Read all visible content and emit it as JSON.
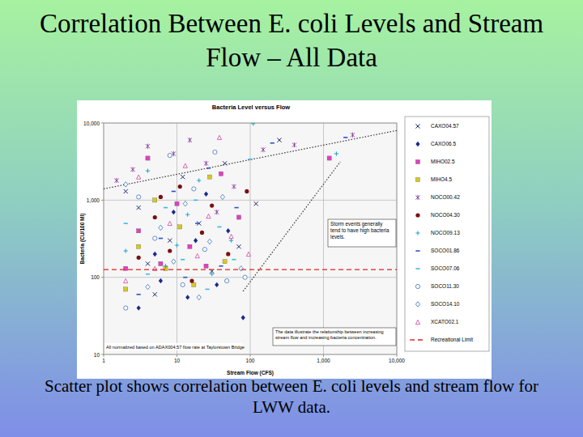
{
  "slide": {
    "title": "Correlation Between E. coli Levels and Stream Flow – All Data",
    "caption": "Scatter plot shows correlation between E. coli levels and stream flow for LWW data."
  },
  "chart_data": {
    "type": "scatter",
    "title": "Bacteria Level versus Flow",
    "x_label": "Stream Flow (CFS)",
    "y_label": "Bacteria (CU/100 Ml)",
    "log": true,
    "grid": true,
    "legend": "right",
    "xlim": [
      1,
      10000
    ],
    "xticks": [
      1,
      10,
      100,
      {
        "value": 1000,
        "label": "1,000"
      },
      {
        "value": 10000,
        "label": "10,000"
      }
    ],
    "ylim": [
      10,
      10000
    ],
    "yticks": [
      10,
      100,
      {
        "value": 1000,
        "label": "1,000"
      },
      {
        "value": 10000,
        "label": "10,000"
      }
    ],
    "annotations": [
      "Storm events generally tend to have high bacteria levels.",
      "The data illustrate the relationship between increasing stream flow and increasing bacteria concentration.",
      "All normalized based on ADAX004.57 flow rate at Taylorstown Bridge"
    ],
    "trend_lines": [
      {
        "x": [
          1,
          10000
        ],
        "values": [
          1400,
          8000
        ],
        "line_style": "dotted"
      },
      {
        "x": [
          80,
          1700
        ],
        "values": [
          66,
          3150
        ],
        "line_style": "dotted"
      }
    ],
    "series": [
      {
        "name": "CAXO04.57",
        "color": "#1a2a6c",
        "marker": "x",
        "x": [
          2,
          3,
          4,
          5,
          8,
          12,
          20,
          30,
          45,
          70,
          120,
          250
        ],
        "values": [
          1300,
          800,
          150,
          60,
          300,
          2000,
          500,
          120,
          3000,
          250,
          900,
          6000
        ]
      },
      {
        "name": "CAXO06.5",
        "color": "#1a2a8c",
        "marker": "diamond",
        "x": [
          3,
          5,
          6,
          9,
          14,
          18,
          25,
          35,
          50,
          80
        ],
        "values": [
          40,
          200,
          90,
          700,
          55,
          300,
          1200,
          80,
          400,
          30
        ]
      },
      {
        "name": "MIHO02.5",
        "color": "#e040c0",
        "marker": "square",
        "x": [
          2,
          3,
          4,
          6,
          10,
          15,
          25,
          40,
          70,
          1200
        ],
        "values": [
          130,
          400,
          3500,
          150,
          900,
          250,
          140,
          2200,
          600,
          3500
        ]
      },
      {
        "name": "MIHO4.5",
        "color": "#d8c820",
        "marker": "square",
        "x": [
          2,
          3,
          5,
          7,
          11,
          17,
          28,
          45
        ],
        "values": [
          70,
          250,
          1000,
          130,
          450,
          80,
          2000,
          160
        ]
      },
      {
        "name": "NOCO00.42",
        "color": "#8a3aa0",
        "marker": "asterisk",
        "x": [
          1.5,
          2.5,
          4,
          9,
          15,
          25,
          35,
          60,
          150,
          400,
          2500
        ],
        "values": [
          1800,
          2500,
          5000,
          4000,
          6000,
          3000,
          700,
          1500,
          4500,
          5200,
          7000
        ]
      },
      {
        "name": "NOCO04.30",
        "color": "#7a1010",
        "marker": "circle",
        "x": [
          3,
          5,
          6,
          8,
          11,
          16,
          22,
          30,
          50,
          90
        ],
        "values": [
          180,
          600,
          1100,
          220,
          1500,
          90,
          380,
          850,
          200,
          1300
        ]
      },
      {
        "name": "NOCO09.13",
        "color": "#1aa3c9",
        "marker": "plus",
        "x": [
          2,
          4,
          7,
          10,
          14,
          20,
          30,
          55,
          110,
          1500
        ],
        "values": [
          220,
          2400,
          140,
          260,
          650,
          1800,
          110,
          300,
          9800,
          4000
        ]
      },
      {
        "name": "SOCO01.86",
        "color": "#3050c8",
        "marker": "dash",
        "x": [
          3,
          6,
          9,
          13,
          19,
          27,
          40,
          65,
          200,
          2000
        ],
        "values": [
          60,
          320,
          1300,
          100,
          500,
          2600,
          140,
          800,
          5500,
          6500
        ]
      },
      {
        "name": "SOCO07.06",
        "color": "#40b8e8",
        "marker": "dash",
        "x": [
          2,
          4,
          7,
          12,
          18,
          26,
          38,
          60,
          100
        ],
        "values": [
          500,
          110,
          800,
          170,
          1000,
          70,
          450,
          170,
          3400
        ]
      },
      {
        "name": "SOCO11.30",
        "color": "#5080c0",
        "marker": "circle-open",
        "x": [
          2,
          3,
          5,
          8,
          12,
          17,
          24,
          33,
          48,
          85
        ],
        "values": [
          40,
          1100,
          320,
          3800,
          80,
          1400,
          230,
          4200,
          90,
          100
        ]
      },
      {
        "name": "SOCO14.10",
        "color": "#3070b0",
        "marker": "diamond-open",
        "x": [
          2,
          4,
          6,
          9,
          13,
          20,
          28,
          42,
          75
        ],
        "values": [
          1600,
          75,
          440,
          160,
          900,
          55,
          290,
          1100,
          130
        ]
      },
      {
        "name": "XCATO02.1",
        "color": "#d040a0",
        "marker": "triangle-open",
        "x": [
          2,
          3,
          5,
          8,
          13,
          19,
          27,
          38,
          55,
          95
        ],
        "values": [
          90,
          2000,
          130,
          500,
          2800,
          190,
          620,
          6500,
          340,
          200
        ]
      },
      {
        "name": "Recreational Limit",
        "color": "#e02020",
        "type": "line",
        "line_style": "dashed",
        "x": [
          1,
          10000
        ],
        "values": [
          126,
          126
        ]
      }
    ]
  }
}
